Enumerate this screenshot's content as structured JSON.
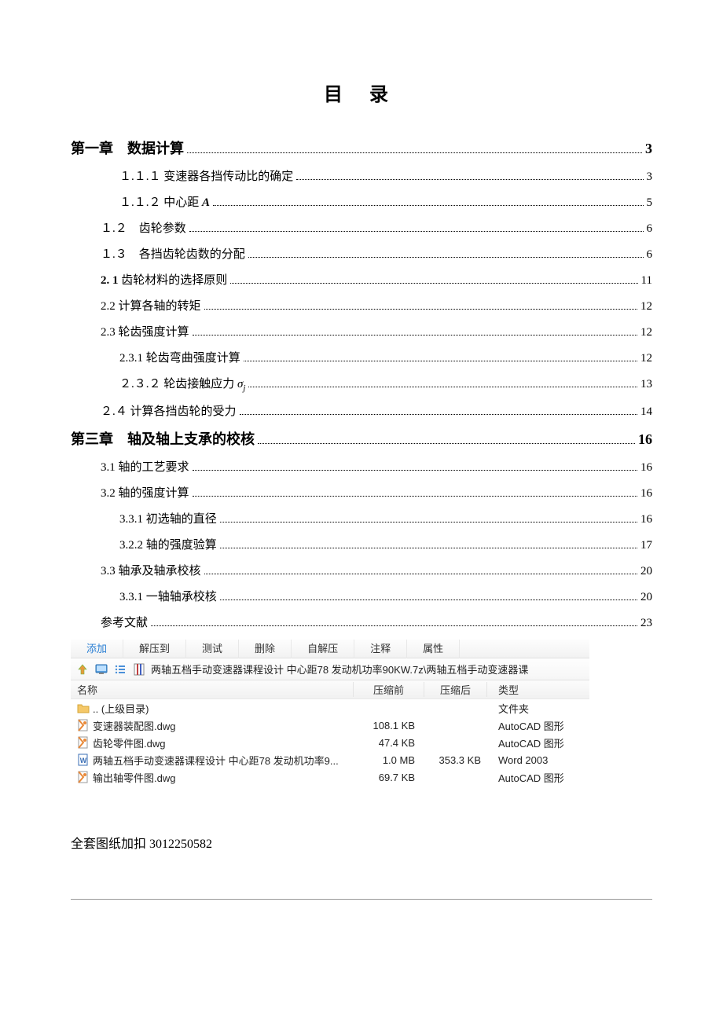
{
  "title": "目 录",
  "toc": [
    {
      "level": 1,
      "text": "第一章 数据计算",
      "page": "3"
    },
    {
      "level": 3,
      "text": "１.１.１ 变速器各挡传动比的确定",
      "page": "3"
    },
    {
      "level": 3,
      "text": "１.１.２ 中心距 ",
      "suffix_italic": "A",
      "page": "5"
    },
    {
      "level": 2,
      "text": "１.２ 齿轮参数",
      "page": "6"
    },
    {
      "level": 2,
      "text": "１.３ 各挡齿轮齿数的分配",
      "page": "6"
    },
    {
      "level": 2,
      "text": "2. 1 齿轮材料的选择原则",
      "page": "11",
      "bold_prefix": true
    },
    {
      "level": 2,
      "text": "2.2 计算各轴的转矩",
      "page": "12"
    },
    {
      "level": 2,
      "text": "2.3 轮齿强度计算",
      "page": "12"
    },
    {
      "level": 3,
      "text": "2.3.1 轮齿弯曲强度计算",
      "page": "12"
    },
    {
      "level": 3,
      "text": "２.３.２ 轮齿接触应力 ",
      "sigma": "σ",
      "sub": "j",
      "page": "13"
    },
    {
      "level": 2,
      "text": "２.４ 计算各挡齿轮的受力",
      "page": "14"
    },
    {
      "level": 1,
      "text": "第三章 轴及轴上支承的校核",
      "page": "16"
    },
    {
      "level": 2,
      "text": "3.1 轴的工艺要求",
      "page": "16"
    },
    {
      "level": 2,
      "text": "3.2 轴的强度计算",
      "page": "16"
    },
    {
      "level": 3,
      "text": "3.3.1 初选轴的直径",
      "page": "16"
    },
    {
      "level": 3,
      "text": "3.2.2 轴的强度验算",
      "page": "17"
    },
    {
      "level": 2,
      "text": "3.3 轴承及轴承校核",
      "page": "20"
    },
    {
      "level": 3,
      "text": "3.3.1 一轴轴承校核",
      "page": "20"
    },
    {
      "level": 2,
      "text": "参考文献",
      "page": "23"
    }
  ],
  "archive": {
    "toolbar": [
      "添加",
      "解压到",
      "测试",
      "删除",
      "自解压",
      "注释",
      "属性"
    ],
    "path_text": "两轴五档手动变速器课程设计 中心距78 发动机功率90KW.7z\\两轴五档手动变速器课",
    "columns": {
      "name": "名称",
      "before": "压缩前",
      "after": "压缩后",
      "type": "类型"
    },
    "rows": [
      {
        "icon": "folder",
        "name": ".. (上级目录)",
        "before": "",
        "after": "",
        "type": "文件夹"
      },
      {
        "icon": "dwg",
        "name": "变速器装配图.dwg",
        "before": "108.1 KB",
        "after": "",
        "type": "AutoCAD 图形"
      },
      {
        "icon": "dwg",
        "name": "齿轮零件图.dwg",
        "before": "47.4 KB",
        "after": "",
        "type": "AutoCAD 图形"
      },
      {
        "icon": "doc",
        "name": "两轴五档手动变速器课程设计 中心距78 发动机功率9...",
        "before": "1.0 MB",
        "after": "353.3 KB",
        "type": "Word 2003"
      },
      {
        "icon": "dwg",
        "name": "输出轴零件图.dwg",
        "before": "69.7 KB",
        "after": "",
        "type": "AutoCAD 图形"
      }
    ]
  },
  "footer": "全套图纸加扣 3012250582",
  "colors": {
    "link_blue": "#2a7fd4",
    "dwg_orange": "#e8893a",
    "doc_blue": "#3b6fb6",
    "folder_yellow": "#f5c869",
    "arrow_green": "#6fb53c",
    "arrow_orange": "#e89a3c"
  }
}
